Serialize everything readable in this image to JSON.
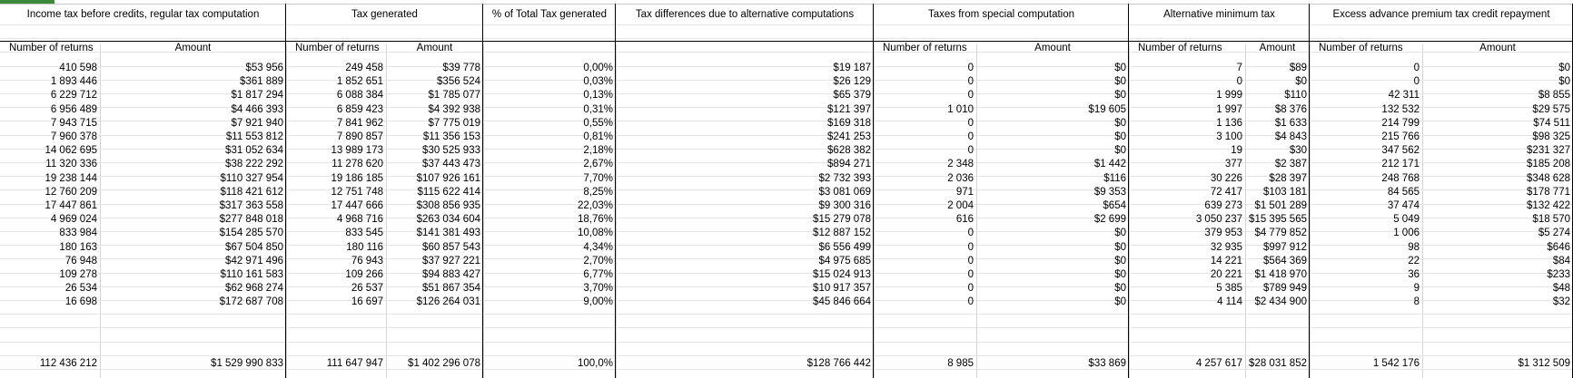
{
  "group_headers": [
    "Income tax before credits, regular tax computation",
    "Tax generated",
    "% of Total Tax generated",
    "Tax differences due to alternative computations",
    "Taxes from special computation",
    "Alternative minimum tax",
    "Excess advance premium tax credit repayment"
  ],
  "sub_headers": [
    "Number of returns",
    "Amount",
    "Number of returns",
    "Amount",
    "",
    "",
    "Number of returns",
    "Amount",
    "Number of returns",
    "Amount",
    "Number of returns",
    "Amount"
  ],
  "rows": [
    [
      "410 598",
      "$53 956",
      "249 458",
      "$39 778",
      "0,00%",
      "$19 187",
      "0",
      "$0",
      "7",
      "$89",
      "0",
      "$0"
    ],
    [
      "1 893 446",
      "$361 889",
      "1 852 651",
      "$356 524",
      "0,03%",
      "$26 129",
      "0",
      "$0",
      "0",
      "$0",
      "0",
      "$0"
    ],
    [
      "6 229 712",
      "$1 817 294",
      "6 088 384",
      "$1 785 077",
      "0,13%",
      "$65 379",
      "0",
      "$0",
      "1 999",
      "$110",
      "42 311",
      "$8 855"
    ],
    [
      "6 956 489",
      "$4 466 393",
      "6 859 423",
      "$4 392 938",
      "0,31%",
      "$121 397",
      "1 010",
      "$19 605",
      "1 997",
      "$8 376",
      "132 532",
      "$29 575"
    ],
    [
      "7 943 715",
      "$7 921 940",
      "7 841 962",
      "$7 775 019",
      "0,55%",
      "$169 318",
      "0",
      "$0",
      "1 136",
      "$1 633",
      "214 799",
      "$74 511"
    ],
    [
      "7 960 378",
      "$11 553 812",
      "7 890 857",
      "$11 356 153",
      "0,81%",
      "$241 253",
      "0",
      "$0",
      "3 100",
      "$4 843",
      "215 766",
      "$98 325"
    ],
    [
      "14 062 695",
      "$31 052 634",
      "13 989 173",
      "$30 525 933",
      "2,18%",
      "$628 382",
      "0",
      "$0",
      "19",
      "$30",
      "347 562",
      "$231 327"
    ],
    [
      "11 320 336",
      "$38 222 292",
      "11 278 620",
      "$37 443 473",
      "2,67%",
      "$894 271",
      "2 348",
      "$1 442",
      "377",
      "$2 387",
      "212 171",
      "$185 208"
    ],
    [
      "19 238 144",
      "$110 327 954",
      "19 186 185",
      "$107 926 161",
      "7,70%",
      "$2 732 393",
      "2 036",
      "$116",
      "30 226",
      "$28 397",
      "248 768",
      "$348 628"
    ],
    [
      "12 760 209",
      "$118 421 612",
      "12 751 748",
      "$115 622 414",
      "8,25%",
      "$3 081 069",
      "971",
      "$9 353",
      "72 417",
      "$103 181",
      "84 565",
      "$178 771"
    ],
    [
      "17 447 861",
      "$317 363 558",
      "17 447 666",
      "$308 856 935",
      "22,03%",
      "$9 300 316",
      "2 004",
      "$654",
      "639 273",
      "$1 501 289",
      "37 474",
      "$132 422"
    ],
    [
      "4 969 024",
      "$277 848 018",
      "4 968 716",
      "$263 034 604",
      "18,76%",
      "$15 279 078",
      "616",
      "$2 699",
      "3 050 237",
      "$15 395 565",
      "5 049",
      "$18 570"
    ],
    [
      "833 984",
      "$154 285 570",
      "833 545",
      "$141 381 493",
      "10,08%",
      "$12 887 152",
      "0",
      "$0",
      "379 953",
      "$4 779 852",
      "1 006",
      "$5 274"
    ],
    [
      "180 163",
      "$67 504 850",
      "180 116",
      "$60 857 543",
      "4,34%",
      "$6 556 499",
      "0",
      "$0",
      "32 935",
      "$997 912",
      "98",
      "$646"
    ],
    [
      "76 948",
      "$42 971 496",
      "76 943",
      "$37 927 221",
      "2,70%",
      "$4 975 685",
      "0",
      "$0",
      "14 221",
      "$564 369",
      "22",
      "$84"
    ],
    [
      "109 278",
      "$110 161 583",
      "109 266",
      "$94 883 427",
      "6,77%",
      "$15 024 913",
      "0",
      "$0",
      "20 221",
      "$1 418 970",
      "36",
      "$233"
    ],
    [
      "26 534",
      "$62 968 274",
      "26 537",
      "$51 867 354",
      "3,70%",
      "$10 917 357",
      "0",
      "$0",
      "5 385",
      "$789 949",
      "9",
      "$48"
    ],
    [
      "16 698",
      "$172 687 708",
      "16 697",
      "$126 264 031",
      "9,00%",
      "$45 846 664",
      "0",
      "$0",
      "4 114",
      "$2 434 900",
      "8",
      "$32"
    ]
  ],
  "total_row": [
    "112 436 212",
    "$1 529 990 833",
    "111 647 947",
    "$1 402 296 078",
    "100,0%",
    "$128 766 442",
    "8 985",
    "$33 869",
    "4 257 617",
    "$28 031 852",
    "1 542 176",
    "$1 312 509"
  ],
  "colors": {
    "grid": "#d4d4d4",
    "border": "#000000",
    "selection": "#3a8a3a"
  }
}
